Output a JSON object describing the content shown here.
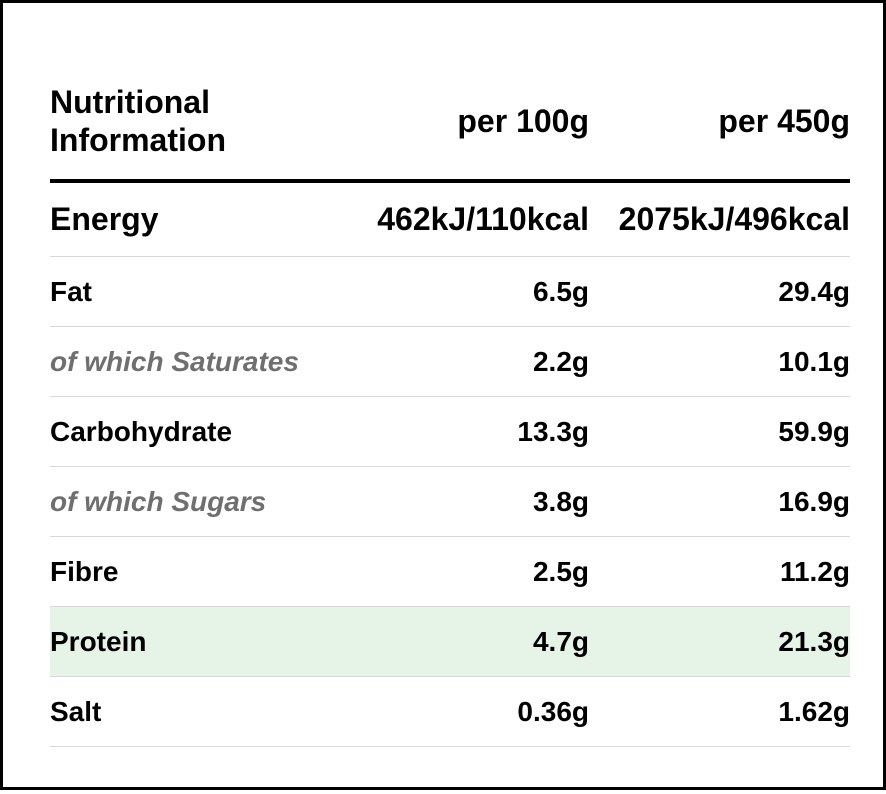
{
  "table": {
    "header": {
      "name": "Nutritional Information",
      "per_100g": "per 100g",
      "per_450g": "per 450g"
    },
    "rows": [
      {
        "name": "Energy",
        "per_100g": "462kJ/110kcal",
        "per_450g": "2075kJ/496kcal"
      },
      {
        "name": "Fat",
        "per_100g": "6.5g",
        "per_450g": "29.4g"
      },
      {
        "name": "of which Saturates",
        "per_100g": "2.2g",
        "per_450g": "10.1g"
      },
      {
        "name": "Carbohydrate",
        "per_100g": "13.3g",
        "per_450g": "59.9g"
      },
      {
        "name": "of which Sugars",
        "per_100g": "3.8g",
        "per_450g": "16.9g"
      },
      {
        "name": "Fibre",
        "per_100g": "2.5g",
        "per_450g": "11.2g"
      },
      {
        "name": "Protein",
        "per_100g": "4.7g",
        "per_450g": "21.3g"
      },
      {
        "name": "Salt",
        "per_100g": "0.36g",
        "per_450g": "1.62g"
      }
    ]
  },
  "colors": {
    "border": "#000000",
    "row_divider": "#d9d9d9",
    "sub_label": "#6f6f6f",
    "highlight_row": "#e6f4e7"
  }
}
